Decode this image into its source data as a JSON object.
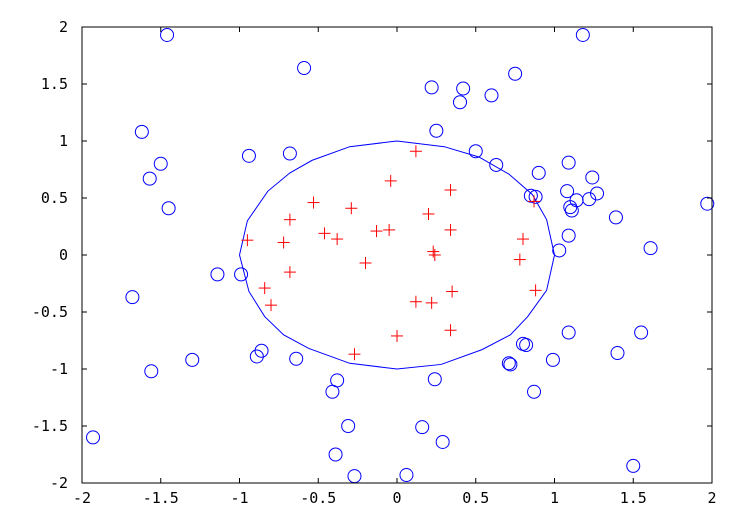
{
  "chart_data": {
    "type": "scatter",
    "title": "",
    "xlabel": "",
    "ylabel": "",
    "xlim": [
      -2,
      2
    ],
    "ylim": [
      -2,
      2
    ],
    "grid": false,
    "xticks": [
      -2,
      -1.5,
      -1,
      -0.5,
      0,
      0.5,
      1,
      1.5,
      2
    ],
    "xtick_labels": [
      "-2",
      "-1.5",
      "-1",
      "-0.5",
      "0",
      "0.5",
      "1",
      "1.5",
      "2"
    ],
    "yticks": [
      -2,
      -1.5,
      -1,
      -0.5,
      0,
      0.5,
      1,
      1.5,
      2
    ],
    "ytick_labels": [
      "-2",
      "-1.5",
      "-1",
      "-0.5",
      "0",
      "0.5",
      "1",
      "1.5",
      "2"
    ],
    "colors": {
      "outside": "#0000ff",
      "inside": "#ff0000",
      "boundary": "#0000ff",
      "axis": "#000000"
    },
    "series": [
      {
        "marker": "circle",
        "points": [
          [
            -1.46,
            1.93
          ],
          [
            -0.59,
            1.64
          ],
          [
            0.22,
            1.47
          ],
          [
            0.42,
            1.46
          ],
          [
            0.75,
            1.59
          ],
          [
            1.18,
            1.93
          ],
          [
            0.4,
            1.34
          ],
          [
            0.6,
            1.4
          ],
          [
            -1.62,
            1.08
          ],
          [
            -1.5,
            0.8
          ],
          [
            -1.57,
            0.67
          ],
          [
            -1.45,
            0.41
          ],
          [
            -0.94,
            0.87
          ],
          [
            -0.68,
            0.89
          ],
          [
            0.25,
            1.09
          ],
          [
            0.5,
            0.91
          ],
          [
            0.63,
            0.79
          ],
          [
            0.9,
            0.72
          ],
          [
            1.09,
            0.81
          ],
          [
            1.24,
            0.68
          ],
          [
            1.08,
            0.56
          ],
          [
            1.27,
            0.54
          ],
          [
            0.85,
            0.52
          ],
          [
            0.88,
            0.51
          ],
          [
            1.14,
            0.48
          ],
          [
            1.22,
            0.49
          ],
          [
            1.1,
            0.42
          ],
          [
            1.11,
            0.39
          ],
          [
            1.39,
            0.33
          ],
          [
            1.97,
            0.45
          ],
          [
            1.09,
            0.17
          ],
          [
            1.03,
            0.04
          ],
          [
            1.61,
            0.06
          ],
          [
            -1.14,
            -0.17
          ],
          [
            -0.99,
            -0.17
          ],
          [
            -1.68,
            -0.37
          ],
          [
            -1.3,
            -0.92
          ],
          [
            -1.56,
            -1.02
          ],
          [
            -0.89,
            -0.89
          ],
          [
            -0.86,
            -0.84
          ],
          [
            -0.64,
            -0.91
          ],
          [
            0.71,
            -0.95
          ],
          [
            0.72,
            -0.96
          ],
          [
            0.8,
            -0.78
          ],
          [
            0.82,
            -0.79
          ],
          [
            0.99,
            -0.92
          ],
          [
            1.09,
            -0.68
          ],
          [
            1.4,
            -0.86
          ],
          [
            1.55,
            -0.68
          ],
          [
            -0.38,
            -1.1
          ],
          [
            -0.41,
            -1.2
          ],
          [
            0.24,
            -1.09
          ],
          [
            0.87,
            -1.2
          ],
          [
            -0.31,
            -1.5
          ],
          [
            0.16,
            -1.51
          ],
          [
            0.29,
            -1.64
          ],
          [
            -0.39,
            -1.75
          ],
          [
            -1.93,
            -1.6
          ],
          [
            -0.27,
            -1.94
          ],
          [
            0.06,
            -1.93
          ],
          [
            1.5,
            -1.85
          ]
        ]
      },
      {
        "marker": "plus",
        "points": [
          [
            0.12,
            0.91
          ],
          [
            -0.04,
            0.65
          ],
          [
            0.34,
            0.57
          ],
          [
            -0.53,
            0.46
          ],
          [
            -0.29,
            0.41
          ],
          [
            0.2,
            0.36
          ],
          [
            -0.68,
            0.31
          ],
          [
            -0.46,
            0.19
          ],
          [
            -0.38,
            0.14
          ],
          [
            -0.13,
            0.21
          ],
          [
            -0.05,
            0.22
          ],
          [
            0.34,
            0.22
          ],
          [
            -0.95,
            0.13
          ],
          [
            -0.72,
            0.11
          ],
          [
            0.8,
            0.14
          ],
          [
            0.87,
            0.47
          ],
          [
            0.23,
            0.03
          ],
          [
            0.24,
            0.0
          ],
          [
            -0.2,
            -0.07
          ],
          [
            0.78,
            -0.04
          ],
          [
            -0.68,
            -0.15
          ],
          [
            -0.84,
            -0.29
          ],
          [
            -0.8,
            -0.44
          ],
          [
            0.12,
            -0.41
          ],
          [
            0.22,
            -0.42
          ],
          [
            0.35,
            -0.32
          ],
          [
            0.88,
            -0.31
          ],
          [
            0.34,
            -0.66
          ],
          [
            0.0,
            -0.71
          ],
          [
            -0.27,
            -0.87
          ]
        ]
      },
      {
        "marker": "line",
        "points": [
          [
            0.0,
            1.0
          ],
          [
            0.3,
            0.95
          ],
          [
            0.52,
            0.86
          ],
          [
            0.71,
            0.71
          ],
          [
            0.86,
            0.53
          ],
          [
            0.95,
            0.31
          ],
          [
            1.0,
            0.0
          ],
          [
            0.95,
            -0.31
          ],
          [
            0.83,
            -0.54
          ],
          [
            0.72,
            -0.7
          ],
          [
            0.54,
            -0.83
          ],
          [
            0.28,
            -0.96
          ],
          [
            0.0,
            -1.0
          ],
          [
            -0.3,
            -0.95
          ],
          [
            -0.56,
            -0.82
          ],
          [
            -0.72,
            -0.7
          ],
          [
            -0.84,
            -0.54
          ],
          [
            -0.94,
            -0.32
          ],
          [
            -1.0,
            0.0
          ],
          [
            -0.95,
            0.3
          ],
          [
            -0.82,
            0.56
          ],
          [
            -0.68,
            0.72
          ],
          [
            -0.54,
            0.83
          ],
          [
            -0.3,
            0.95
          ],
          [
            0.0,
            1.0
          ]
        ]
      }
    ]
  }
}
